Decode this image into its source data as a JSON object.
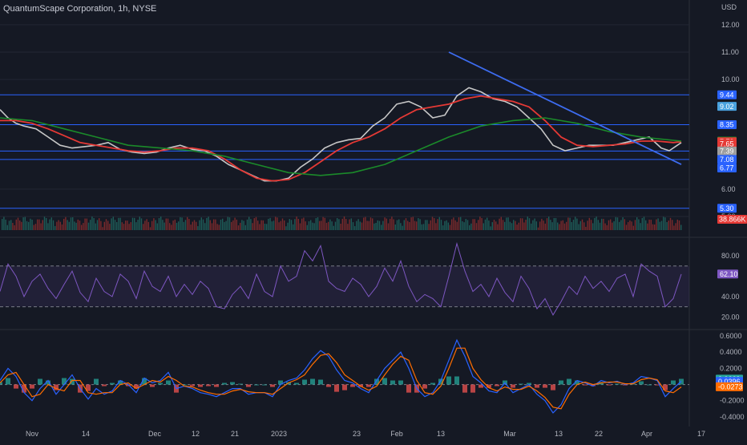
{
  "header": {
    "title": "QuantumScape Corporation, 1h, NYSE",
    "currency": "USD"
  },
  "colors": {
    "bg": "#151924",
    "grid": "#232733",
    "axis_text": "#b2b5be",
    "hline": "#2962ff",
    "price": "#c7c7c7",
    "ma_fast": "#e53935",
    "ma_slow": "#1b8a2a",
    "trendline": "#3d6cf0",
    "rsi": "#7e57c2",
    "macd": "#2962ff",
    "signal": "#ff6d00",
    "hist_up": "#26a69a",
    "hist_down": "#ef5350"
  },
  "chart_data": [
    {
      "type": "line",
      "panel": "price",
      "ylim": [
        5.0,
        12.2
      ],
      "yticks": [
        "12.00",
        "11.00",
        "10.00",
        "6.00",
        "5.00"
      ],
      "x_tick_labels": [
        "Nov",
        "14",
        "Dec",
        "12",
        "21",
        "2023",
        "23",
        "Feb",
        "13",
        "Mar",
        "13",
        "22",
        "Apr",
        "17"
      ],
      "horizontal_levels": [
        9.44,
        8.35,
        7.39,
        7.08,
        5.3
      ],
      "price_labels": [
        {
          "text": "9.44",
          "value": 9.44,
          "color": "#2962ff"
        },
        {
          "text": "9.02",
          "value": 9.02,
          "color": "#4aa3df"
        },
        {
          "text": "8.35",
          "value": 8.35,
          "color": "#2962ff"
        },
        {
          "text": "7.75",
          "value": 7.75,
          "color": "#1b8a2a"
        },
        {
          "text": "7.73",
          "value": 7.73,
          "color": "#e53935"
        },
        {
          "text": "7.65",
          "value": 7.65,
          "color": "#e53935"
        },
        {
          "text": "7.39",
          "value": 7.39,
          "color": "#9e9e9e"
        },
        {
          "text": "7.08",
          "value": 7.08,
          "color": "#2962ff"
        },
        {
          "text": "6.77",
          "value": 6.77,
          "color": "#2962ff"
        },
        {
          "text": "5.30",
          "value": 5.3,
          "color": "#2962ff"
        }
      ],
      "volume_label": {
        "text": "38.866K",
        "color": "#e53935"
      },
      "series": [
        {
          "color": "#c7c7c7",
          "x": [
            0,
            10,
            20,
            30,
            45,
            60,
            75,
            90,
            105,
            120,
            135,
            150,
            165,
            180,
            195,
            210,
            225,
            240,
            255,
            270,
            285,
            300,
            315,
            330,
            345,
            360,
            375,
            390,
            405,
            420,
            435,
            450,
            465,
            480,
            495,
            510,
            525,
            540,
            555,
            570,
            585,
            600,
            615,
            630,
            645,
            660,
            675,
            690,
            705,
            720,
            735,
            750,
            765,
            780,
            795,
            810,
            825,
            835,
            845,
            850
          ],
          "y": [
            8.9,
            8.6,
            8.4,
            8.3,
            8.2,
            7.9,
            7.6,
            7.5,
            7.55,
            7.6,
            7.7,
            7.45,
            7.35,
            7.3,
            7.35,
            7.5,
            7.6,
            7.45,
            7.4,
            7.2,
            6.9,
            6.7,
            6.5,
            6.3,
            6.3,
            6.4,
            6.8,
            7.1,
            7.5,
            7.7,
            7.8,
            7.85,
            8.3,
            8.6,
            9.1,
            9.2,
            9.0,
            8.6,
            8.7,
            9.4,
            9.7,
            9.55,
            9.3,
            9.2,
            9.0,
            8.6,
            8.2,
            7.6,
            7.4,
            7.5,
            7.6,
            7.6,
            7.6,
            7.7,
            7.8,
            7.9,
            7.5,
            7.4,
            7.6,
            7.7
          ]
        },
        {
          "color": "#e53935",
          "x": [
            0,
            20,
            40,
            60,
            80,
            100,
            120,
            140,
            160,
            180,
            200,
            220,
            240,
            260,
            280,
            300,
            320,
            340,
            360,
            380,
            400,
            420,
            440,
            460,
            480,
            500,
            520,
            540,
            560,
            580,
            600,
            620,
            640,
            660,
            680,
            700,
            720,
            740,
            760,
            780,
            800,
            820,
            840,
            850
          ],
          "y": [
            8.5,
            8.5,
            8.4,
            8.2,
            7.95,
            7.7,
            7.6,
            7.5,
            7.4,
            7.35,
            7.4,
            7.5,
            7.5,
            7.4,
            7.1,
            6.7,
            6.4,
            6.3,
            6.35,
            6.6,
            7.0,
            7.4,
            7.7,
            7.9,
            8.2,
            8.6,
            8.9,
            9.0,
            9.1,
            9.3,
            9.4,
            9.3,
            9.2,
            9.0,
            8.5,
            7.9,
            7.6,
            7.55,
            7.6,
            7.65,
            7.75,
            7.75,
            7.7,
            7.73
          ]
        },
        {
          "color": "#1b8a2a",
          "x": [
            0,
            40,
            80,
            120,
            160,
            200,
            240,
            280,
            320,
            360,
            400,
            440,
            480,
            520,
            560,
            600,
            640,
            680,
            720,
            760,
            800,
            850
          ],
          "y": [
            8.6,
            8.5,
            8.2,
            7.9,
            7.6,
            7.5,
            7.4,
            7.2,
            6.9,
            6.6,
            6.5,
            6.6,
            6.9,
            7.4,
            7.9,
            8.3,
            8.5,
            8.6,
            8.4,
            8.1,
            7.9,
            7.75
          ]
        },
        {
          "color": "#3d6cf0",
          "x": [
            560,
            850
          ],
          "y": [
            11.0,
            6.9
          ]
        }
      ]
    },
    {
      "type": "line",
      "panel": "rsi",
      "ylim": [
        10,
        95
      ],
      "yticks": [
        "80.00",
        "40.00",
        "20.00"
      ],
      "bands": [
        70,
        30
      ],
      "last_value_label": {
        "text": "62.10",
        "value": 62.1
      },
      "x": [
        0,
        10,
        20,
        30,
        40,
        50,
        60,
        70,
        80,
        90,
        100,
        110,
        120,
        130,
        140,
        150,
        160,
        170,
        180,
        190,
        200,
        210,
        220,
        230,
        240,
        250,
        260,
        270,
        280,
        290,
        300,
        310,
        320,
        330,
        340,
        350,
        360,
        370,
        380,
        390,
        400,
        410,
        420,
        430,
        440,
        450,
        460,
        470,
        480,
        490,
        500,
        510,
        520,
        530,
        540,
        550,
        560,
        570,
        580,
        590,
        600,
        610,
        620,
        630,
        640,
        650,
        660,
        670,
        680,
        690,
        700,
        710,
        720,
        730,
        740,
        750,
        760,
        770,
        780,
        790,
        800,
        810,
        820,
        830,
        840,
        850
      ],
      "y": [
        45,
        72,
        60,
        40,
        55,
        62,
        48,
        38,
        52,
        65,
        44,
        35,
        58,
        45,
        40,
        62,
        55,
        38,
        65,
        50,
        45,
        60,
        40,
        52,
        42,
        55,
        48,
        30,
        28,
        42,
        50,
        38,
        62,
        45,
        40,
        70,
        55,
        60,
        85,
        75,
        90,
        55,
        48,
        45,
        58,
        52,
        40,
        50,
        68,
        55,
        75,
        50,
        35,
        42,
        38,
        30,
        60,
        92,
        65,
        45,
        52,
        40,
        58,
        44,
        35,
        60,
        48,
        28,
        38,
        22,
        35,
        50,
        42,
        60,
        48,
        55,
        45,
        58,
        62,
        40,
        72,
        65,
        60,
        30,
        38,
        62
      ]
    },
    {
      "type": "line",
      "panel": "macd",
      "ylim": [
        -0.5,
        0.65
      ],
      "yticks": [
        "0.6000",
        "0.4000",
        "0.2000",
        "-0.2000",
        "-0.4000"
      ],
      "value_labels": [
        {
          "text": "0.0669",
          "value": 0.0669,
          "color": "#26a69a"
        },
        {
          "text": "0.0396",
          "value": 0.0396,
          "color": "#2962ff"
        },
        {
          "text": "-0.0273",
          "value": -0.0273,
          "color": "#ff6d00"
        }
      ],
      "x": [
        0,
        10,
        20,
        30,
        40,
        50,
        60,
        70,
        80,
        90,
        100,
        110,
        120,
        130,
        140,
        150,
        160,
        170,
        180,
        190,
        200,
        210,
        220,
        230,
        240,
        250,
        260,
        270,
        280,
        290,
        300,
        310,
        320,
        330,
        340,
        350,
        360,
        370,
        380,
        390,
        400,
        410,
        420,
        430,
        440,
        450,
        460,
        470,
        480,
        490,
        500,
        510,
        520,
        530,
        540,
        550,
        560,
        570,
        580,
        590,
        600,
        610,
        620,
        630,
        640,
        650,
        660,
        670,
        680,
        690,
        700,
        710,
        720,
        730,
        740,
        750,
        760,
        770,
        780,
        790,
        800,
        810,
        820,
        830,
        840,
        850
      ],
      "series": [
        {
          "name": "",
          "color": "#2962ff",
          "y": [
            0.05,
            0.2,
            0.1,
            -0.1,
            -0.2,
            -0.05,
            0.05,
            -0.12,
            0.0,
            0.12,
            -0.05,
            -0.18,
            -0.05,
            -0.12,
            -0.08,
            0.05,
            0.0,
            -0.1,
            0.08,
            0.02,
            0.05,
            0.15,
            -0.05,
            -0.02,
            -0.05,
            -0.1,
            -0.12,
            -0.15,
            -0.1,
            -0.05,
            -0.05,
            -0.12,
            -0.1,
            -0.1,
            -0.15,
            0.0,
            0.05,
            0.08,
            0.18,
            0.32,
            0.42,
            0.35,
            0.18,
            0.05,
            0.02,
            -0.05,
            -0.1,
            0.05,
            0.2,
            0.3,
            0.4,
            0.2,
            -0.05,
            -0.15,
            -0.1,
            0.05,
            0.3,
            0.55,
            0.35,
            0.1,
            0.02,
            -0.08,
            -0.1,
            0.02,
            -0.1,
            -0.05,
            0.0,
            -0.12,
            -0.2,
            -0.35,
            -0.25,
            -0.05,
            0.05,
            0.02,
            -0.02,
            0.05,
            0.02,
            0.04,
            0.0,
            0.02,
            0.1,
            0.08,
            0.05,
            -0.15,
            -0.05,
            0.04
          ]
        },
        {
          "name": "",
          "color": "#ff6d00",
          "y": [
            0.02,
            0.12,
            0.15,
            0.0,
            -0.15,
            -0.12,
            0.0,
            -0.05,
            -0.08,
            0.05,
            0.05,
            -0.1,
            -0.12,
            -0.1,
            -0.1,
            0.0,
            0.02,
            -0.05,
            0.0,
            0.05,
            0.03,
            0.1,
            0.05,
            -0.02,
            -0.03,
            -0.07,
            -0.1,
            -0.12,
            -0.12,
            -0.08,
            -0.06,
            -0.09,
            -0.1,
            -0.1,
            -0.12,
            -0.05,
            0.02,
            0.06,
            0.12,
            0.25,
            0.36,
            0.38,
            0.27,
            0.12,
            0.05,
            -0.02,
            -0.07,
            -0.02,
            0.12,
            0.25,
            0.35,
            0.3,
            0.05,
            -0.1,
            -0.12,
            -0.02,
            0.2,
            0.45,
            0.45,
            0.2,
            0.06,
            -0.04,
            -0.08,
            -0.03,
            -0.06,
            -0.06,
            -0.02,
            -0.08,
            -0.16,
            -0.28,
            -0.3,
            -0.12,
            0.0,
            0.03,
            0.0,
            0.02,
            0.03,
            0.03,
            0.01,
            0.01,
            0.06,
            0.08,
            0.06,
            -0.08,
            -0.1,
            -0.03
          ]
        }
      ]
    }
  ]
}
